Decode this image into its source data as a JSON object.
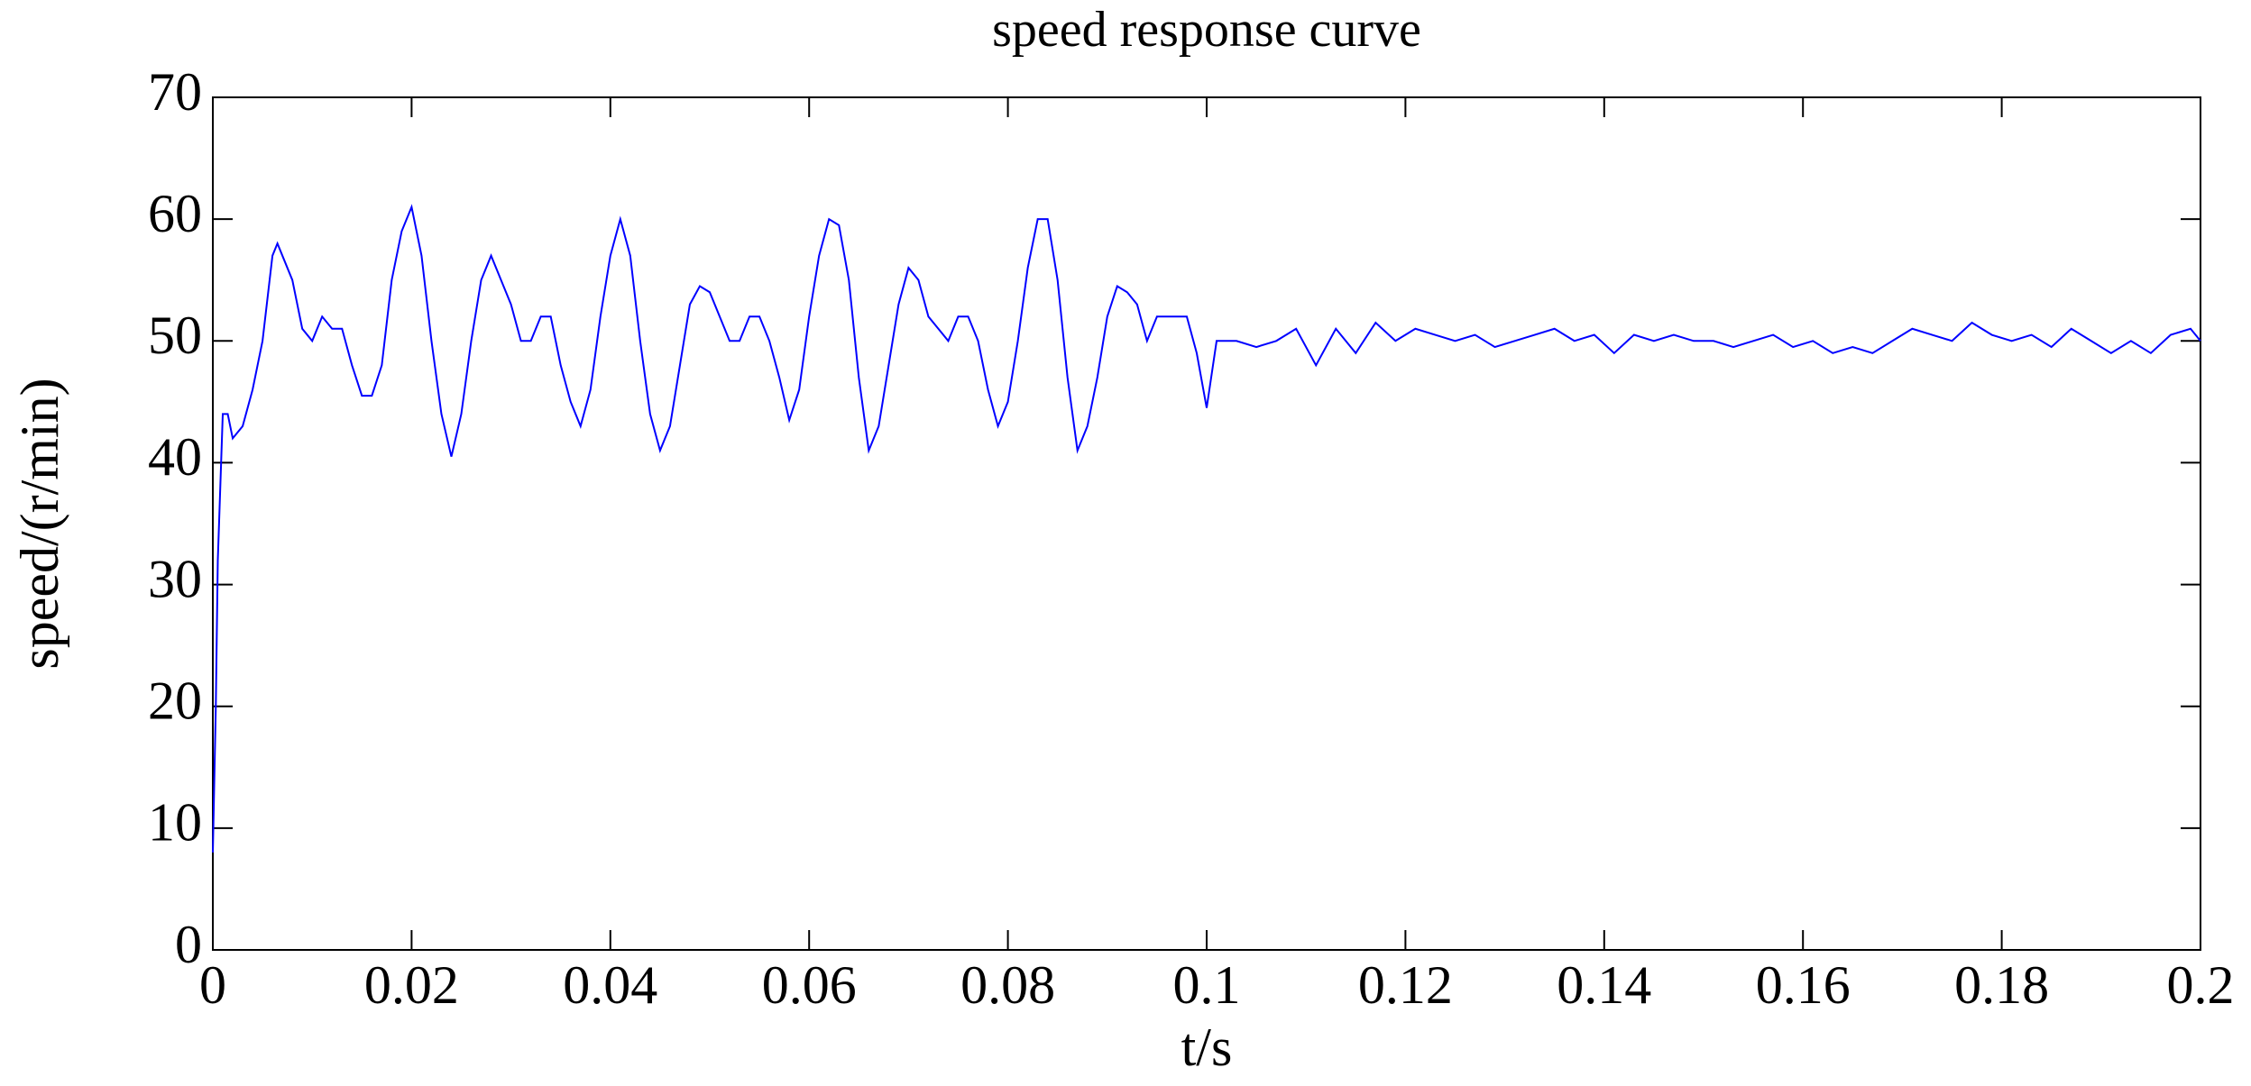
{
  "chart_data": {
    "type": "line",
    "title": "speed response curve",
    "xlabel": "t/s",
    "ylabel": "speed/(r/min)",
    "x": [
      0,
      0.0003,
      0.0005,
      0.001,
      0.0015,
      0.002,
      0.003,
      0.004,
      0.005,
      0.006,
      0.0065,
      0.007,
      0.008,
      0.009,
      0.01,
      0.011,
      0.012,
      0.013,
      0.014,
      0.015,
      0.016,
      0.017,
      0.018,
      0.019,
      0.02,
      0.021,
      0.022,
      0.023,
      0.024,
      0.025,
      0.026,
      0.027,
      0.028,
      0.029,
      0.03,
      0.031,
      0.032,
      0.033,
      0.034,
      0.035,
      0.036,
      0.037,
      0.038,
      0.039,
      0.04,
      0.041,
      0.042,
      0.043,
      0.044,
      0.045,
      0.046,
      0.047,
      0.048,
      0.049,
      0.05,
      0.051,
      0.052,
      0.053,
      0.054,
      0.055,
      0.056,
      0.057,
      0.058,
      0.059,
      0.06,
      0.061,
      0.062,
      0.063,
      0.064,
      0.065,
      0.066,
      0.067,
      0.068,
      0.069,
      0.07,
      0.071,
      0.072,
      0.073,
      0.074,
      0.075,
      0.076,
      0.077,
      0.078,
      0.079,
      0.08,
      0.081,
      0.082,
      0.083,
      0.084,
      0.085,
      0.086,
      0.087,
      0.088,
      0.089,
      0.09,
      0.091,
      0.092,
      0.093,
      0.094,
      0.095,
      0.096,
      0.097,
      0.098,
      0.099,
      0.1,
      0.101,
      0.103,
      0.105,
      0.107,
      0.109,
      0.111,
      0.113,
      0.115,
      0.117,
      0.119,
      0.121,
      0.123,
      0.125,
      0.127,
      0.129,
      0.131,
      0.133,
      0.135,
      0.137,
      0.139,
      0.141,
      0.143,
      0.145,
      0.147,
      0.149,
      0.151,
      0.153,
      0.155,
      0.157,
      0.159,
      0.161,
      0.163,
      0.165,
      0.167,
      0.169,
      0.171,
      0.173,
      0.175,
      0.177,
      0.179,
      0.181,
      0.183,
      0.185,
      0.187,
      0.189,
      0.191,
      0.193,
      0.195,
      0.197,
      0.199,
      0.2
    ],
    "series": [
      {
        "color": "#0000ff",
        "values": [
          8,
          20,
          32,
          44,
          44,
          42,
          43,
          46,
          50,
          57,
          58,
          57,
          55,
          51,
          50,
          52,
          51,
          51,
          48,
          45.5,
          45.5,
          48,
          55,
          59,
          61,
          57,
          50,
          44,
          40.5,
          44,
          50,
          55,
          57,
          55,
          53,
          50,
          50,
          52,
          52,
          48,
          45,
          43,
          46,
          52,
          57,
          60,
          57,
          50,
          44,
          41,
          43,
          48,
          53,
          54.5,
          54,
          52,
          50,
          50,
          52,
          52,
          50,
          47,
          43.5,
          46,
          52,
          57,
          60,
          59.5,
          55,
          47,
          41,
          43,
          48,
          53,
          56,
          55,
          52,
          51,
          50,
          52,
          52,
          50,
          46,
          43,
          45,
          50,
          56,
          60,
          60,
          55,
          47,
          41,
          43,
          47,
          52,
          54.5,
          54,
          53,
          50,
          52,
          52,
          52,
          52,
          49,
          44.5,
          50,
          50,
          49.5,
          50,
          51,
          48,
          51,
          49,
          51.5,
          50,
          51,
          50.5,
          50,
          50.5,
          49.5,
          50,
          50.5,
          51,
          50,
          50.5,
          49,
          50.5,
          50,
          50.5,
          50,
          50,
          49.5,
          50,
          50.5,
          49.5,
          50,
          49,
          49.5,
          49,
          50,
          51,
          50.5,
          50,
          51.5,
          50.5,
          50,
          50.5,
          49.5,
          51,
          50,
          49,
          50,
          49,
          50.5,
          51,
          50
        ]
      }
    ],
    "xlim": [
      0,
      0.2
    ],
    "xticks": [
      0,
      0.02,
      0.04,
      0.06,
      0.08,
      0.1,
      0.12,
      0.14,
      0.16,
      0.18,
      0.2
    ],
    "ylim": [
      0,
      70
    ],
    "yticks": [
      0,
      10,
      20,
      30,
      40,
      50,
      60,
      70
    ]
  }
}
